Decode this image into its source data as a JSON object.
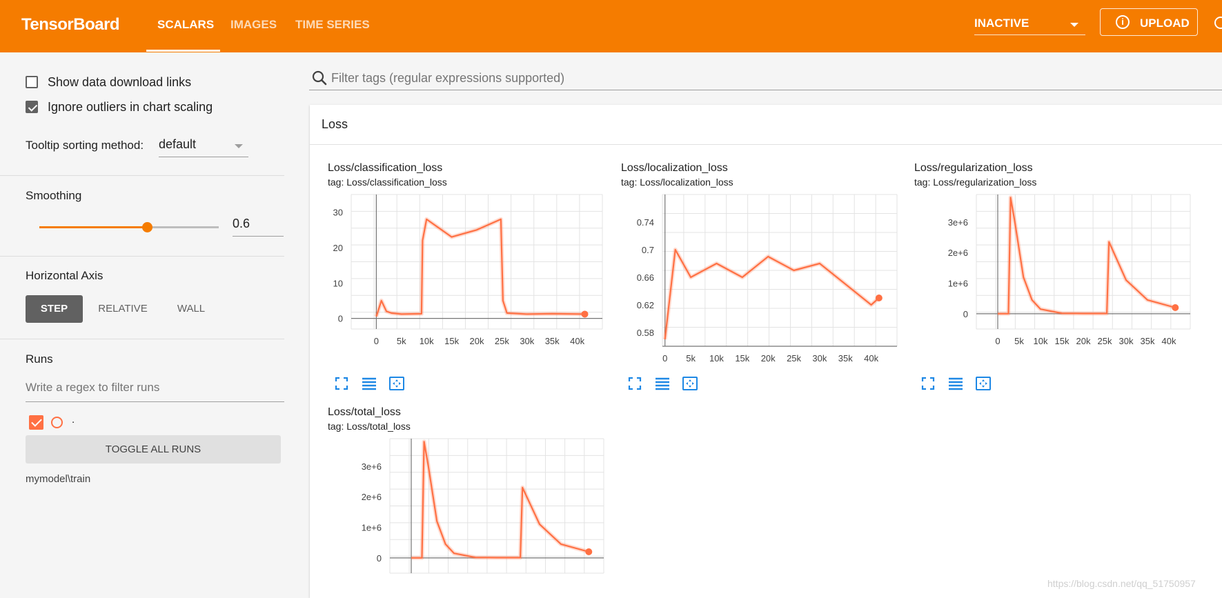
{
  "header": {
    "brand": "TensorBoard",
    "tabs": [
      {
        "label": "SCALARS",
        "active": true
      },
      {
        "label": "IMAGES",
        "active": false
      },
      {
        "label": "TIME SERIES",
        "active": false
      }
    ],
    "run_status": "INACTIVE",
    "upload_label": "UPLOAD",
    "upload_icon": "info-icon",
    "accent_color": "#f57c00"
  },
  "sidebar": {
    "show_download_links": {
      "label": "Show data download links",
      "checked": false
    },
    "ignore_outliers": {
      "label": "Ignore outliers in chart scaling",
      "checked": true
    },
    "tooltip_sorting": {
      "label": "Tooltip sorting method:",
      "value": "default"
    },
    "smoothing": {
      "label": "Smoothing",
      "value": "0.6",
      "fraction": 0.6
    },
    "horizontal_axis": {
      "label": "Horizontal Axis",
      "options": [
        "STEP",
        "RELATIVE",
        "WALL"
      ],
      "selected": "STEP"
    },
    "runs": {
      "label": "Runs",
      "filter_placeholder": "Write a regex to filter runs",
      "run_label": ".",
      "run_color": "#ff7043",
      "toggle_all": "TOGGLE ALL RUNS",
      "run_name": "mymodel\\train"
    }
  },
  "main": {
    "filter_placeholder": "Filter tags (regular expressions supported)",
    "group_title": "Loss",
    "charts": [
      {
        "title": "Loss/classification_loss",
        "tag": "tag: Loss/classification_loss"
      },
      {
        "title": "Loss/localization_loss",
        "tag": "tag: Loss/localization_loss"
      },
      {
        "title": "Loss/regularization_loss",
        "tag": "tag: Loss/regularization_loss"
      },
      {
        "title": "Loss/total_loss",
        "tag": "tag: Loss/total_loss"
      }
    ],
    "toolbar_icons": [
      "fullscreen-icon",
      "data-table-icon",
      "fit-domain-icon"
    ]
  },
  "watermark": "https://blog.csdn.net/qq_51750957",
  "chart_data": [
    {
      "type": "line",
      "title": "Loss/classification_loss",
      "x": [
        0,
        1000,
        2000,
        3000,
        5000,
        9000,
        9200,
        10000,
        15000,
        20000,
        24800,
        25200,
        26000,
        30000,
        35000,
        41500
      ],
      "series": [
        {
          "values": [
            0.5,
            5,
            2,
            1.5,
            1.2,
            1.3,
            22,
            28,
            23,
            25,
            28,
            5,
            1.5,
            1.2,
            1.3,
            1.2
          ]
        }
      ],
      "xticks": [
        "0",
        "5k",
        "10k",
        "15k",
        "20k",
        "25k",
        "30k",
        "35k",
        "40k"
      ],
      "yticks": [
        "0",
        "10",
        "20",
        "30"
      ],
      "xlim": [
        -5000,
        45000
      ],
      "ylim": [
        -3,
        35
      ]
    },
    {
      "type": "line",
      "title": "Loss/localization_loss",
      "x": [
        0,
        2000,
        5000,
        10000,
        15000,
        20000,
        25000,
        30000,
        35000,
        40000,
        41500
      ],
      "series": [
        {
          "values": [
            0.57,
            0.7,
            0.66,
            0.68,
            0.66,
            0.69,
            0.67,
            0.68,
            0.65,
            0.62,
            0.63
          ]
        }
      ],
      "xticks": [
        "0",
        "5k",
        "10k",
        "15k",
        "20k",
        "25k",
        "30k",
        "35k",
        "40k"
      ],
      "yticks": [
        "0.58",
        "0.62",
        "0.66",
        "0.7",
        "0.74"
      ],
      "xlim": [
        -500,
        45000
      ],
      "ylim": [
        0.56,
        0.78
      ]
    },
    {
      "type": "line",
      "title": "Loss/regularization_loss",
      "x": [
        0,
        2500,
        3000,
        4000,
        6000,
        8000,
        10000,
        15000,
        20000,
        25500,
        26000,
        30000,
        35000,
        41500
      ],
      "series": [
        {
          "values": [
            0,
            0,
            3800000,
            3000000,
            1200000,
            450000,
            150000,
            15000,
            8000,
            8000,
            2350000,
            1100000,
            450000,
            200000
          ]
        }
      ],
      "xticks": [
        "0",
        "5k",
        "10k",
        "15k",
        "20k",
        "25k",
        "30k",
        "35k",
        "40k"
      ],
      "yticks": [
        "0",
        "1e+6",
        "2e+6",
        "3e+6"
      ],
      "xlim": [
        -5000,
        45000
      ],
      "ylim": [
        -500000,
        3900000
      ]
    },
    {
      "type": "line",
      "title": "Loss/total_loss",
      "x": [
        0,
        2500,
        3000,
        4000,
        6000,
        8000,
        10000,
        15000,
        20000,
        25500,
        26000,
        30000,
        35000,
        41500
      ],
      "series": [
        {
          "values": [
            0,
            0,
            3800000,
            3000000,
            1200000,
            450000,
            150000,
            15000,
            8000,
            8000,
            2300000,
            1100000,
            450000,
            200000
          ]
        }
      ],
      "xticks": [],
      "yticks": [
        "0",
        "1e+6",
        "2e+6",
        "3e+6"
      ],
      "xlim": [
        -5000,
        45000
      ],
      "ylim": [
        -500000,
        3900000
      ]
    }
  ]
}
